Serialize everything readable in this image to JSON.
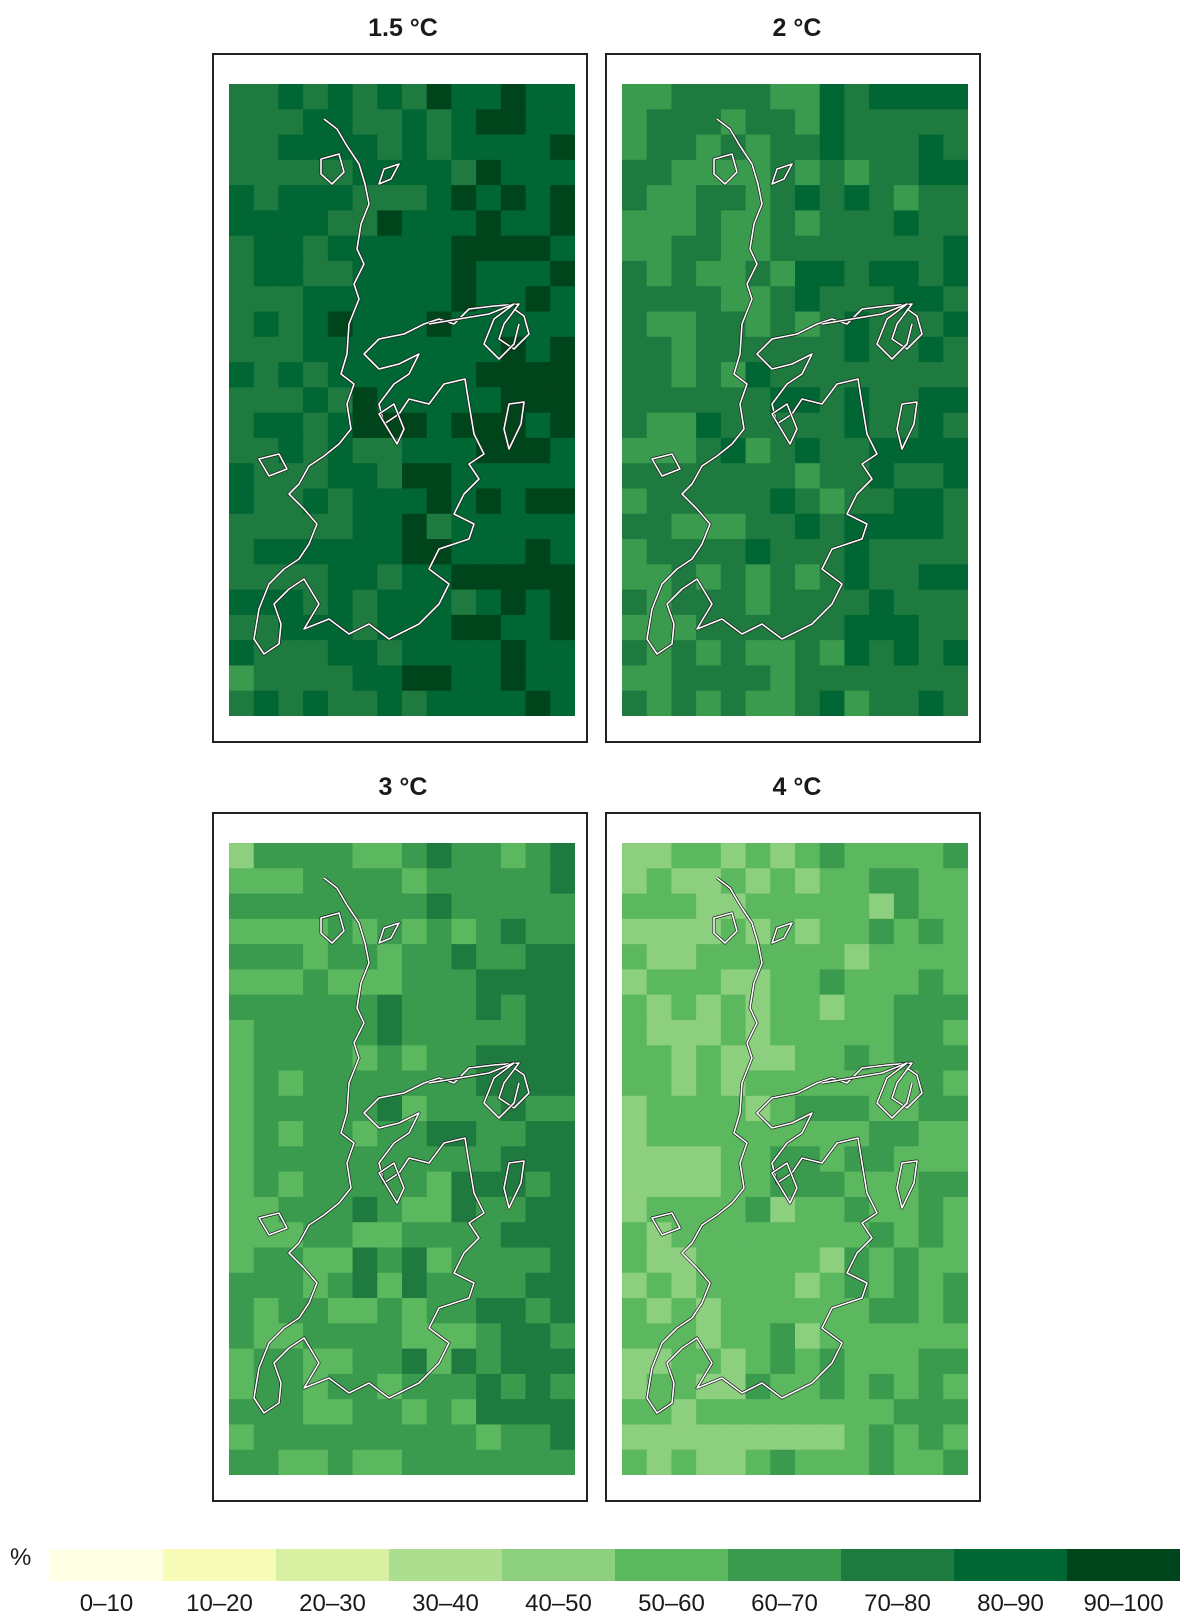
{
  "chart_data": {
    "type": "heatmap",
    "unit": "%",
    "panels": [
      {
        "title": "1.5 °C",
        "mean_class": 8,
        "spread": 1
      },
      {
        "title": "2 °C",
        "mean_class": 7,
        "spread": 1
      },
      {
        "title": "3 °C",
        "mean_class": 6,
        "spread": 1
      },
      {
        "title": "4 °C",
        "mean_class": 5,
        "spread": 1
      }
    ],
    "legend": {
      "classes": [
        "0–10",
        "10–20",
        "20–30",
        "30–40",
        "40–50",
        "50–60",
        "60–70",
        "70–80",
        "80–90",
        "90–100"
      ],
      "colors": [
        "#ffffe5",
        "#f7fcb9",
        "#d9f0a3",
        "#addd8e",
        "#8ccf7e",
        "#5cb85f",
        "#3a9a4e",
        "#1e7a3e",
        "#006633",
        "#00441b"
      ]
    }
  }
}
